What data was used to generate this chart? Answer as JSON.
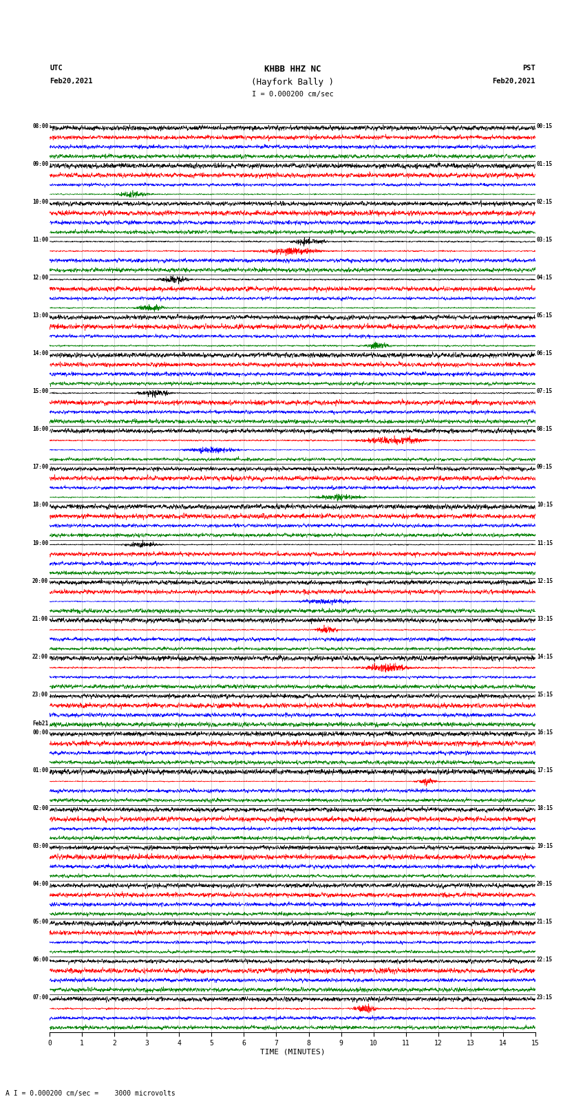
{
  "title_line1": "KHBB HHZ NC",
  "title_line2": "(Hayfork Bally )",
  "scale_label": "I = 0.000200 cm/sec",
  "bottom_label": "A I = 0.000200 cm/sec =    3000 microvolts",
  "utc_label": "UTC",
  "pst_label": "PST",
  "utc_date": "Feb20,2021",
  "pst_date": "Feb20,2021",
  "xlabel": "TIME (MINUTES)",
  "xticks": [
    0,
    1,
    2,
    3,
    4,
    5,
    6,
    7,
    8,
    9,
    10,
    11,
    12,
    13,
    14,
    15
  ],
  "xmin": 0,
  "xmax": 15,
  "bg_color": "#ffffff",
  "trace_colors": [
    "black",
    "red",
    "blue",
    "green"
  ],
  "left_times_utc": [
    "08:00",
    "",
    "",
    "",
    "09:00",
    "",
    "",
    "",
    "10:00",
    "",
    "",
    "",
    "11:00",
    "",
    "",
    "",
    "12:00",
    "",
    "",
    "",
    "13:00",
    "",
    "",
    "",
    "14:00",
    "",
    "",
    "",
    "15:00",
    "",
    "",
    "",
    "16:00",
    "",
    "",
    "",
    "17:00",
    "",
    "",
    "",
    "18:00",
    "",
    "",
    "",
    "19:00",
    "",
    "",
    "",
    "20:00",
    "",
    "",
    "",
    "21:00",
    "",
    "",
    "",
    "22:00",
    "",
    "",
    "",
    "23:00",
    "",
    "",
    "",
    "Feb21",
    "00:00",
    "",
    "",
    "01:00",
    "",
    "",
    "",
    "02:00",
    "",
    "",
    "",
    "03:00",
    "",
    "",
    "",
    "04:00",
    "",
    "",
    "",
    "05:00",
    "",
    "",
    "",
    "06:00",
    "",
    "",
    "",
    "07:00",
    "",
    ""
  ],
  "right_times_pst": [
    "00:15",
    "",
    "",
    "",
    "01:15",
    "",
    "",
    "",
    "02:15",
    "",
    "",
    "",
    "03:15",
    "",
    "",
    "",
    "04:15",
    "",
    "",
    "",
    "05:15",
    "",
    "",
    "",
    "06:15",
    "",
    "",
    "",
    "07:15",
    "",
    "",
    "",
    "08:15",
    "",
    "",
    "",
    "09:15",
    "",
    "",
    "",
    "10:15",
    "",
    "",
    "",
    "11:15",
    "",
    "",
    "",
    "12:15",
    "",
    "",
    "",
    "13:15",
    "",
    "",
    "",
    "14:15",
    "",
    "",
    "",
    "15:15",
    "",
    "",
    "",
    "16:15",
    "",
    "",
    "",
    "17:15",
    "",
    "",
    "",
    "18:15",
    "",
    "",
    "",
    "19:15",
    "",
    "",
    "",
    "20:15",
    "",
    "",
    "",
    "21:15",
    "",
    "",
    "",
    "22:15",
    "",
    "",
    "",
    "23:15",
    "",
    ""
  ],
  "num_rows": 95,
  "traces_per_row": 1,
  "noise_seed": 42,
  "amplitude": 0.35,
  "fig_width": 8.5,
  "fig_height": 16.13,
  "dpi": 100
}
